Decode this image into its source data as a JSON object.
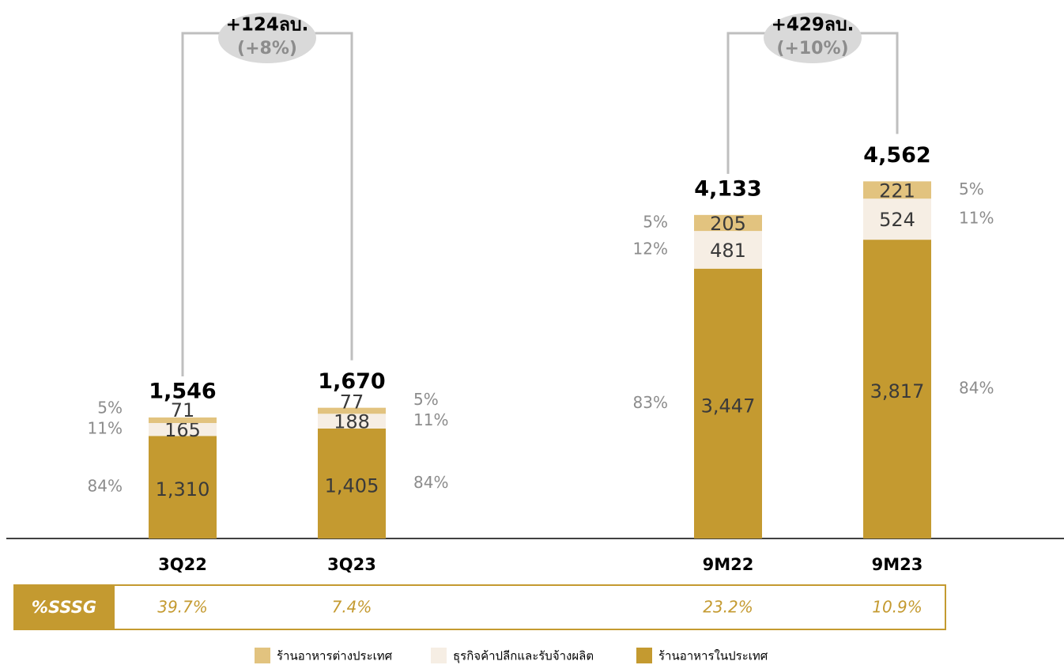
{
  "chart_data": {
    "type": "stacked_bar",
    "categories": [
      "3Q22",
      "3Q23",
      "9M22",
      "9M23"
    ],
    "ylim": [
      0,
      5000
    ],
    "series": [
      {
        "name": "ร้านอาหารในประเทศ",
        "color": "#C49A30",
        "values": [
          1310,
          1405,
          3447,
          3817
        ],
        "value_labels": [
          "1,310",
          "1,405",
          "3,447",
          "3,817"
        ],
        "shares": [
          84,
          84,
          83,
          84
        ],
        "share_labels": [
          "84%",
          "84%",
          "83%",
          "84%"
        ]
      },
      {
        "name": "ธุรกิจค้าปลีกและรับจ้างผลิต",
        "color": "#F6EEE4",
        "values": [
          165,
          188,
          481,
          524
        ],
        "value_labels": [
          "165",
          "188",
          "481",
          "524"
        ],
        "shares": [
          11,
          11,
          12,
          11
        ],
        "share_labels": [
          "11%",
          "11%",
          "12%",
          "11%"
        ]
      },
      {
        "name": "ร้านอาหารต่างประเทศ",
        "color": "#E2C37F",
        "values": [
          71,
          77,
          205,
          221
        ],
        "value_labels": [
          "71",
          "77",
          "205",
          "221"
        ],
        "shares": [
          5,
          5,
          5,
          5
        ],
        "share_labels": [
          "5%",
          "5%",
          "5%",
          "5%"
        ]
      }
    ],
    "totals": [
      1546,
      1670,
      4133,
      4562
    ],
    "total_labels": [
      "1,546",
      "1,670",
      "4,133",
      "4,562"
    ],
    "annotations": [
      {
        "text": "+124ลบ.",
        "subtext": "(+8%)"
      },
      {
        "text": "+429ลบ.",
        "subtext": "(+10%)"
      }
    ],
    "sssg": {
      "label": "%SSSG",
      "values": [
        39.7,
        7.4,
        23.2,
        10.9
      ],
      "value_labels": [
        "39.7%",
        "7.4%",
        "23.2%",
        "10.9%"
      ]
    }
  }
}
